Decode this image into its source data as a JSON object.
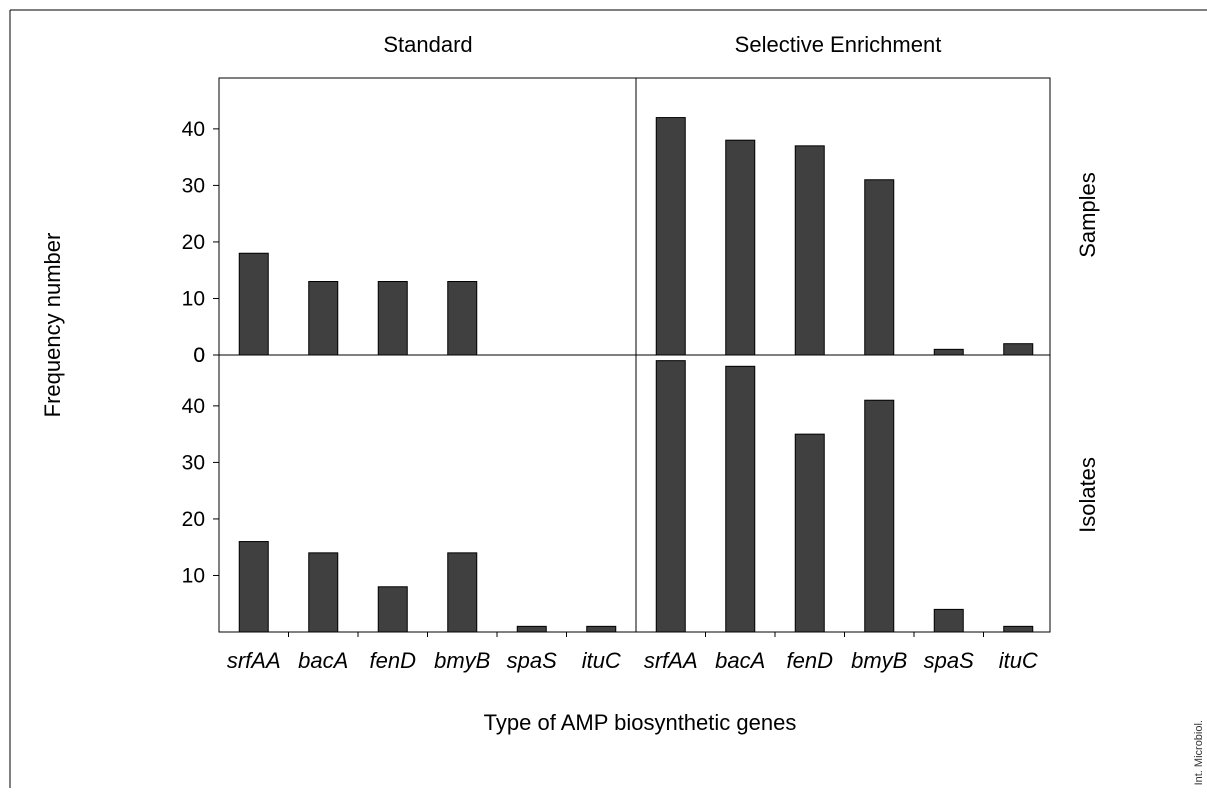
{
  "chart_data": {
    "type": "bar",
    "columns": [
      "Standard",
      "Selective Enrichment"
    ],
    "rows": [
      "Samples",
      "Isolates"
    ],
    "categories": [
      "srfAA",
      "bacA",
      "fenD",
      "bmyB",
      "spaS",
      "ituC"
    ],
    "xlabel": "Type of AMP biosynthetic genes",
    "ylabel": "Frequency number",
    "ylim": [
      0,
      49
    ],
    "yticks_top": [
      "0",
      "10",
      "20",
      "30",
      "40"
    ],
    "yticks_bottom": [
      "10",
      "20",
      "30",
      "40",
      "0"
    ],
    "panels": [
      {
        "row": "Samples",
        "column": "Standard",
        "values": [
          18,
          13,
          13,
          13,
          0,
          0
        ]
      },
      {
        "row": "Samples",
        "column": "Selective Enrichment",
        "values": [
          42,
          38,
          37,
          31,
          1,
          2
        ]
      },
      {
        "row": "Isolates",
        "column": "Standard",
        "values": [
          16,
          14,
          8,
          14,
          1,
          1
        ]
      },
      {
        "row": "Isolates",
        "column": "Selective Enrichment",
        "values": [
          48,
          47,
          35,
          41,
          4,
          1
        ]
      }
    ],
    "bar_color": "#404040",
    "grid": false,
    "legend": "none"
  },
  "credit": "Int. Microbiol."
}
